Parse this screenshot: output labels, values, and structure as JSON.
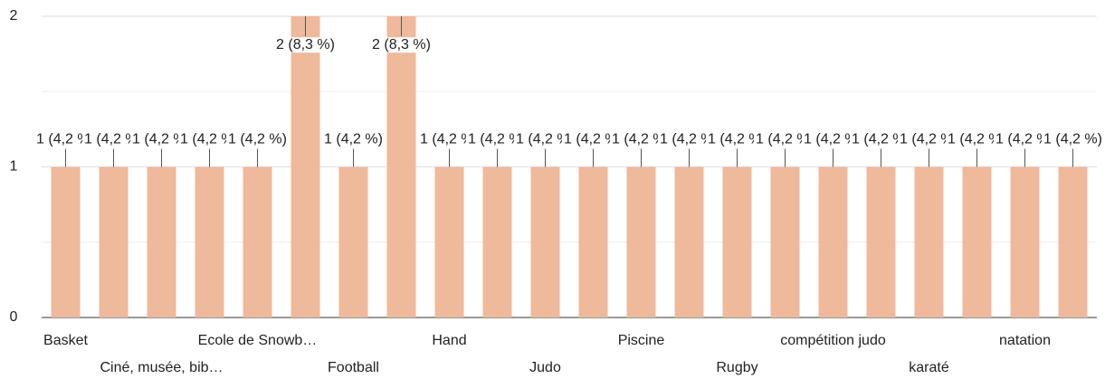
{
  "chart_data": {
    "type": "bar",
    "categories": [
      "Basket",
      null,
      "Ciné, musée, bib…",
      null,
      "Ecole de Snowb…",
      null,
      "Football",
      null,
      "Hand",
      null,
      "Judo",
      null,
      "Piscine",
      null,
      "Rugby",
      null,
      "compétition judo",
      null,
      "karaté",
      null,
      "natation",
      null
    ],
    "values": [
      1,
      1,
      1,
      1,
      1,
      2,
      1,
      2,
      1,
      1,
      1,
      1,
      1,
      1,
      1,
      1,
      1,
      1,
      1,
      1,
      1,
      1
    ],
    "value_labels": [
      "1 (4,2 %)",
      "1 (4,2 %)",
      "1 (4,2 %)",
      "1 (4,2 %)",
      "1 (4,2 %)",
      "2 (8,3 %)",
      "1 (4,2 %)",
      "2 (8,3 %)",
      "1 (4,2 %)",
      "1 (4,2 %)",
      "1 (4,2 %)",
      "1 (4,2 %)",
      "1 (4,2 %)",
      "1 (4,2 %)",
      "1 (4,2 %)",
      "1 (4,2 %)",
      "1 (4,2 %)",
      "1 (4,2 %)",
      "1 (4,2 %)",
      "1 (4,2 %)",
      "1 (4,2 %)",
      "1 (4,2 %)"
    ],
    "color": "#efb99c",
    "ylim": [
      0,
      2
    ],
    "yticks": [
      0,
      1,
      2
    ],
    "minor_yticks": [
      0.5,
      1.5
    ],
    "grid": true
  }
}
